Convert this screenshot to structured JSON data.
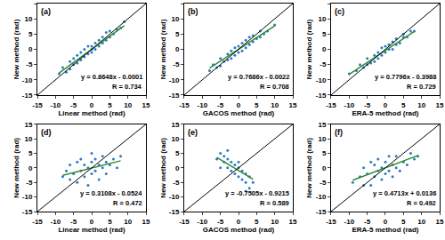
{
  "chart_data": [
    {
      "type": "scatter",
      "title": "(a)",
      "x_label": "Linear method (rad)",
      "y_label": "New method (rad)",
      "xlim": [
        -15,
        15
      ],
      "ylim": [
        -15,
        15
      ],
      "xticks": [
        -15,
        -10,
        -5,
        0,
        5,
        10,
        15
      ],
      "yticks": [
        -15,
        -10,
        -5,
        0,
        5,
        10,
        15
      ],
      "color": "#2b7bbf",
      "x": [
        -9,
        -8,
        -7,
        -6,
        -6,
        -5,
        -5,
        -4,
        -4,
        -3,
        -3,
        -2,
        -2,
        -1,
        -1,
        0,
        0,
        0,
        1,
        1,
        2,
        2,
        3,
        3,
        4,
        4,
        5,
        5,
        6,
        7,
        8,
        9
      ],
      "values": [
        -8,
        -6,
        -7.5,
        -4,
        -6.5,
        -5,
        -3,
        -4.5,
        -2,
        -3.5,
        -1,
        -2.5,
        0,
        -1.5,
        1,
        -1,
        1,
        0,
        0,
        2,
        1,
        3,
        2,
        4,
        3,
        5.5,
        4,
        6,
        5,
        6.5,
        7,
        9
      ],
      "fit": {
        "slope": 0.8648,
        "intercept": -0.0001,
        "color": "#2e8b2e"
      },
      "annotations": [
        "y = 0.8648x - 0.0001",
        "R = 0.734"
      ]
    },
    {
      "type": "scatter",
      "title": "(b)",
      "x_label": "GACOS method (rad)",
      "y_label": "New method (rad)",
      "xlim": [
        -15,
        15
      ],
      "ylim": [
        -15,
        15
      ],
      "xticks": [
        -15,
        -10,
        -5,
        0,
        5,
        10,
        15
      ],
      "yticks": [
        -15,
        -10,
        -5,
        0,
        5,
        10,
        15
      ],
      "color": "#2b7bbf",
      "x": [
        -8,
        -7,
        -6,
        -5,
        -5,
        -4,
        -3,
        -3,
        -2,
        -2,
        -1,
        -1,
        0,
        0,
        1,
        1,
        2,
        2,
        3,
        3,
        4,
        4,
        5,
        6,
        6,
        7,
        8,
        10
      ],
      "values": [
        -7,
        -5,
        -6,
        -3,
        -5.5,
        -4,
        -1.5,
        -3.5,
        -3,
        -0.5,
        -2,
        0.5,
        -1,
        1,
        -0.5,
        2,
        0.5,
        3,
        1.5,
        4,
        2.5,
        4.5,
        3.5,
        4,
        6,
        5,
        6,
        8
      ],
      "fit": {
        "slope": 0.7686,
        "intercept": -0.0022,
        "color": "#2e8b2e"
      },
      "annotations": [
        "y = 0.7686x - 0.0022",
        "R = 0.708"
      ]
    },
    {
      "type": "scatter",
      "title": "(c)",
      "x_label": "ERA-5 method (rad)",
      "y_label": "New method (rad)",
      "xlim": [
        -15,
        15
      ],
      "ylim": [
        -15,
        15
      ],
      "xticks": [
        -15,
        -10,
        -5,
        0,
        5,
        10,
        15
      ],
      "yticks": [
        -15,
        -10,
        -5,
        0,
        5,
        10,
        15
      ],
      "color": "#2b7bbf",
      "x": [
        -10,
        -8,
        -7,
        -6,
        -5,
        -5,
        -4,
        -3,
        -3,
        -2,
        -2,
        -1,
        -1,
        0,
        0,
        1,
        1,
        2,
        2,
        3,
        3,
        4,
        5,
        5,
        6,
        7,
        8
      ],
      "values": [
        -8,
        -7,
        -5,
        -6,
        -3,
        -5,
        -4.5,
        -2,
        -4,
        -1,
        -3,
        -2,
        0.5,
        -1,
        1,
        0,
        1.5,
        0,
        2.5,
        1.5,
        3.5,
        2,
        4,
        5,
        4,
        6,
        6
      ],
      "fit": {
        "slope": 0.7796,
        "intercept": -0.3988,
        "color": "#2e8b2e"
      },
      "annotations": [
        "y = 0.7796x - 0.3988",
        "R = 0.729"
      ]
    },
    {
      "type": "scatter",
      "title": "(d)",
      "x_label": "Linear method (rad)",
      "y_label": "New method (rad)",
      "xlim": [
        -15,
        15
      ],
      "ylim": [
        -15,
        15
      ],
      "xticks": [
        -15,
        -10,
        -5,
        0,
        5,
        10,
        15
      ],
      "yticks": [
        -15,
        -10,
        -5,
        0,
        5,
        10,
        15
      ],
      "color": "#2b7bbf",
      "x": [
        -8,
        -7,
        -6,
        -6,
        -5,
        -4,
        -4,
        -3,
        -3,
        -2,
        -2,
        -1,
        -1,
        0,
        0,
        0,
        1,
        1,
        2,
        2,
        3,
        3,
        4,
        4,
        5,
        6,
        7,
        8
      ],
      "values": [
        -3,
        -1,
        -4,
        1,
        -2,
        -5,
        2,
        -1,
        3,
        -3,
        1,
        -6,
        0,
        -2,
        2,
        5,
        -1,
        3,
        -4,
        1,
        0,
        4,
        -2,
        2,
        1,
        3,
        0,
        4
      ],
      "fit": {
        "slope": 0.3108,
        "intercept": -0.0524,
        "color": "#2e8b2e"
      },
      "annotations": [
        "y = 0.3108x - 0.0524",
        "R = 0.472"
      ]
    },
    {
      "type": "scatter",
      "title": "(e)",
      "x_label": "GACOS method (rad)",
      "y_label": "New method (rad)",
      "xlim": [
        -15,
        15
      ],
      "ylim": [
        -15,
        15
      ],
      "xticks": [
        -15,
        -10,
        -5,
        0,
        5,
        10,
        15
      ],
      "yticks": [
        -15,
        -10,
        -5,
        0,
        5,
        10,
        15
      ],
      "color": "#2b7bbf",
      "x": [
        -6,
        -5,
        -5,
        -4,
        -4,
        -3,
        -3,
        -3,
        -2,
        -2,
        -1,
        -1,
        0,
        0,
        0,
        1,
        1,
        2,
        2,
        3,
        3,
        4,
        2
      ],
      "values": [
        3,
        5,
        0,
        2,
        4,
        0,
        3,
        6,
        -1,
        2,
        -2,
        1,
        -3,
        0,
        2,
        -4,
        -1,
        -5,
        -2,
        -3,
        -7,
        -5,
        -8
      ],
      "fit": {
        "slope": -0.7505,
        "intercept": -0.9215,
        "color": "#2e8b2e"
      },
      "annotations": [
        "y = -0.7505x - 0.9215",
        "R = 0.589"
      ]
    },
    {
      "type": "scatter",
      "title": "(f)",
      "x_label": "ERA-5 method (rad)",
      "y_label": "New method (rad)",
      "xlim": [
        -15,
        15
      ],
      "ylim": [
        -15,
        15
      ],
      "xticks": [
        -15,
        -10,
        -5,
        0,
        5,
        10,
        15
      ],
      "yticks": [
        -15,
        -10,
        -5,
        0,
        5,
        10,
        15
      ],
      "color": "#2b7bbf",
      "x": [
        -9,
        -7,
        -6,
        -6,
        -5,
        -4,
        -4,
        -3,
        -3,
        -2,
        -2,
        -1,
        -1,
        0,
        0,
        1,
        1,
        2,
        2,
        3,
        3,
        4,
        5,
        6,
        7,
        8,
        9
      ],
      "values": [
        -5,
        -3,
        -6,
        0,
        -2,
        -6,
        2,
        -3,
        1,
        -1,
        3,
        -4,
        0,
        -2,
        2,
        -1,
        4,
        -3,
        1,
        0,
        4,
        -1,
        2,
        1,
        5,
        3,
        4
      ],
      "fit": {
        "slope": 0.4713,
        "intercept": 0.0136,
        "color": "#2e8b2e"
      },
      "annotations": [
        "y = 0.4713x + 0.0136",
        "R = 0.492"
      ]
    }
  ]
}
